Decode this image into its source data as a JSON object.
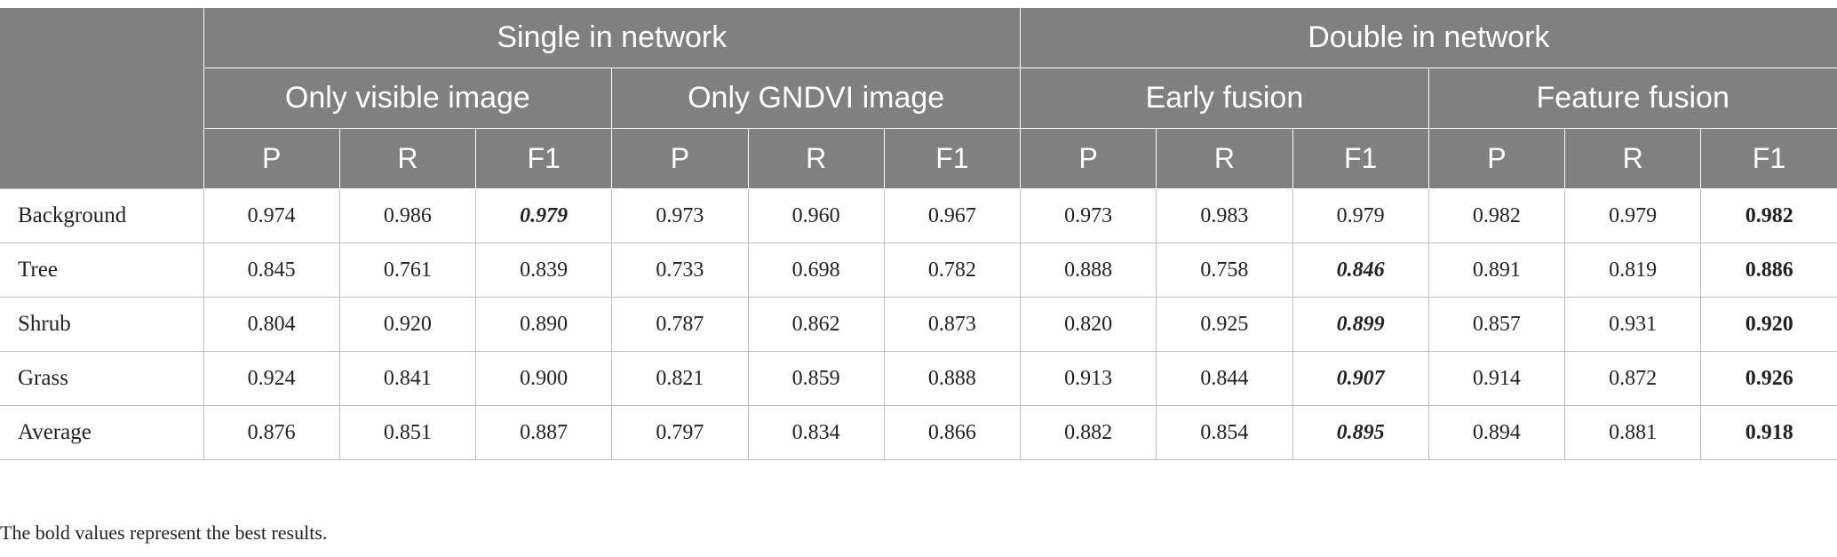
{
  "header": {
    "groups": [
      "Single in network",
      "Double in network"
    ],
    "subgroups": [
      "Only visible image",
      "Only GNDVI image",
      "Early fusion",
      "Feature fusion"
    ],
    "metrics": [
      "P",
      "R",
      "F1",
      "P",
      "R",
      "F1",
      "P",
      "R",
      "F1",
      "P",
      "R",
      "F1"
    ]
  },
  "rows": [
    {
      "label": "Background",
      "values": [
        "0.974",
        "0.986",
        "0.979",
        "0.973",
        "0.960",
        "0.967",
        "0.973",
        "0.983",
        "0.979",
        "0.982",
        "0.979",
        "0.982"
      ]
    },
    {
      "label": "Tree",
      "values": [
        "0.845",
        "0.761",
        "0.839",
        "0.733",
        "0.698",
        "0.782",
        "0.888",
        "0.758",
        "0.846",
        "0.891",
        "0.819",
        "0.886"
      ]
    },
    {
      "label": "Shrub",
      "values": [
        "0.804",
        "0.920",
        "0.890",
        "0.787",
        "0.862",
        "0.873",
        "0.820",
        "0.925",
        "0.899",
        "0.857",
        "0.931",
        "0.920"
      ]
    },
    {
      "label": "Grass",
      "values": [
        "0.924",
        "0.841",
        "0.900",
        "0.821",
        "0.859",
        "0.888",
        "0.913",
        "0.844",
        "0.907",
        "0.914",
        "0.872",
        "0.926"
      ]
    },
    {
      "label": "Average",
      "values": [
        "0.876",
        "0.851",
        "0.887",
        "0.797",
        "0.834",
        "0.866",
        "0.882",
        "0.854",
        "0.895",
        "0.894",
        "0.881",
        "0.918"
      ]
    }
  ],
  "footnote": "The bold values represent the best results.",
  "colors": {
    "header_bg": "#808080",
    "header_text": "#ffffff",
    "grid": "#bdbdbd"
  }
}
